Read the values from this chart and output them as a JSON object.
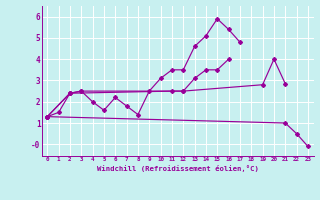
{
  "xlabel": "Windchill (Refroidissement éolien,°C)",
  "bg_color": "#c8f0f0",
  "line_color": "#990099",
  "grid_color": "#ffffff",
  "xlim": [
    -0.5,
    23.5
  ],
  "ylim": [
    -0.55,
    6.5
  ],
  "xticks": [
    0,
    1,
    2,
    3,
    4,
    5,
    6,
    7,
    8,
    9,
    10,
    11,
    12,
    13,
    14,
    15,
    16,
    17,
    18,
    19,
    20,
    21,
    22,
    23
  ],
  "yticks": [
    0,
    1,
    2,
    3,
    4,
    5,
    6
  ],
  "ytick_labels": [
    "-0",
    "1",
    "2",
    "3",
    "4",
    "5",
    "6"
  ],
  "line1_x": [
    0,
    1,
    2,
    3,
    4,
    5,
    6,
    7,
    8,
    9,
    10,
    11,
    12,
    13,
    14,
    15,
    16,
    17
  ],
  "line1_y": [
    1.3,
    1.5,
    2.4,
    2.5,
    2.0,
    1.6,
    2.2,
    1.8,
    1.4,
    2.5,
    3.1,
    3.5,
    3.5,
    4.6,
    5.1,
    5.9,
    5.4,
    4.8
  ],
  "line2_x": [
    0,
    2,
    3,
    12,
    19,
    20,
    21
  ],
  "line2_y": [
    1.3,
    2.4,
    2.5,
    2.5,
    2.8,
    4.0,
    2.85
  ],
  "line3_x": [
    0,
    21,
    22,
    23
  ],
  "line3_y": [
    1.3,
    1.0,
    0.5,
    -0.1
  ],
  "line4_x": [
    0,
    2,
    11,
    12,
    13,
    14,
    15,
    16
  ],
  "line4_y": [
    1.3,
    2.4,
    2.5,
    2.5,
    3.1,
    3.5,
    3.5,
    4.0
  ]
}
